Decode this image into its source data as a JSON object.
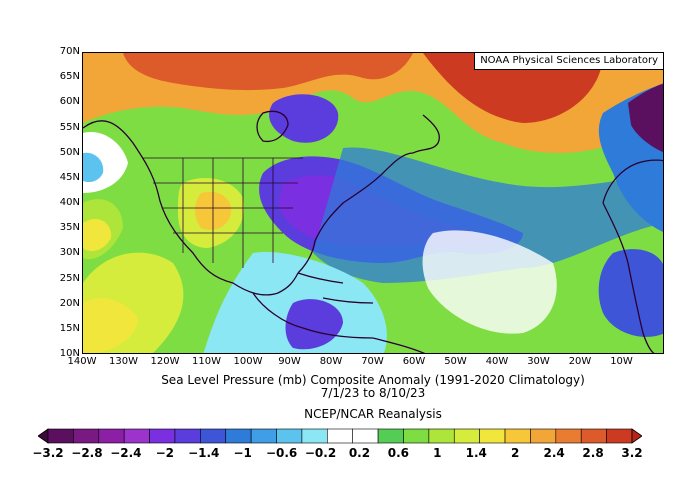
{
  "map": {
    "credit": "NOAA Physical Sciences Laboratory",
    "lat_labels": [
      "70N",
      "65N",
      "60N",
      "55N",
      "50N",
      "45N",
      "40N",
      "35N",
      "30N",
      "25N",
      "20N",
      "15N",
      "10N"
    ],
    "lon_labels": [
      "140W",
      "130W",
      "120W",
      "110W",
      "100W",
      "90W",
      "80W",
      "70W",
      "60W",
      "50W",
      "40W",
      "30W",
      "20W",
      "10W"
    ],
    "region": {
      "lon_min": -140,
      "lon_max": -5,
      "lat_min": 10,
      "lat_max": 70
    }
  },
  "caption": {
    "line1": "Sea Level Pressure (mb) Composite Anomaly (1991-2020 Climatology)",
    "line2": "7/1/23  to 8/10/23",
    "line3": "NCEP/NCAR Reanalysis"
  },
  "colorbar": {
    "labels": [
      "−3.2",
      "−2.8",
      "−2.4",
      "−2",
      "−1.4",
      "−1",
      "−0.6",
      "−0.2",
      "0.2",
      "0.6",
      "1",
      "1.4",
      "2",
      "2.4",
      "2.8",
      "3.2"
    ],
    "colors": [
      "#3d0a3d",
      "#5a0f5f",
      "#781a82",
      "#8c1fa6",
      "#9b33cc",
      "#7a2fe0",
      "#5a3ddc",
      "#3d55d6",
      "#2f7bd9",
      "#3f9ee6",
      "#5bc3ee",
      "#8be7f3",
      "#ffffff",
      "#ffffff",
      "#55cc55",
      "#7fdd44",
      "#aee53a",
      "#d6ec3c",
      "#f0e63c",
      "#f7c73a",
      "#f2a637",
      "#ea7c31",
      "#dd5a2a",
      "#cc3a22",
      "#b82418"
    ]
  }
}
